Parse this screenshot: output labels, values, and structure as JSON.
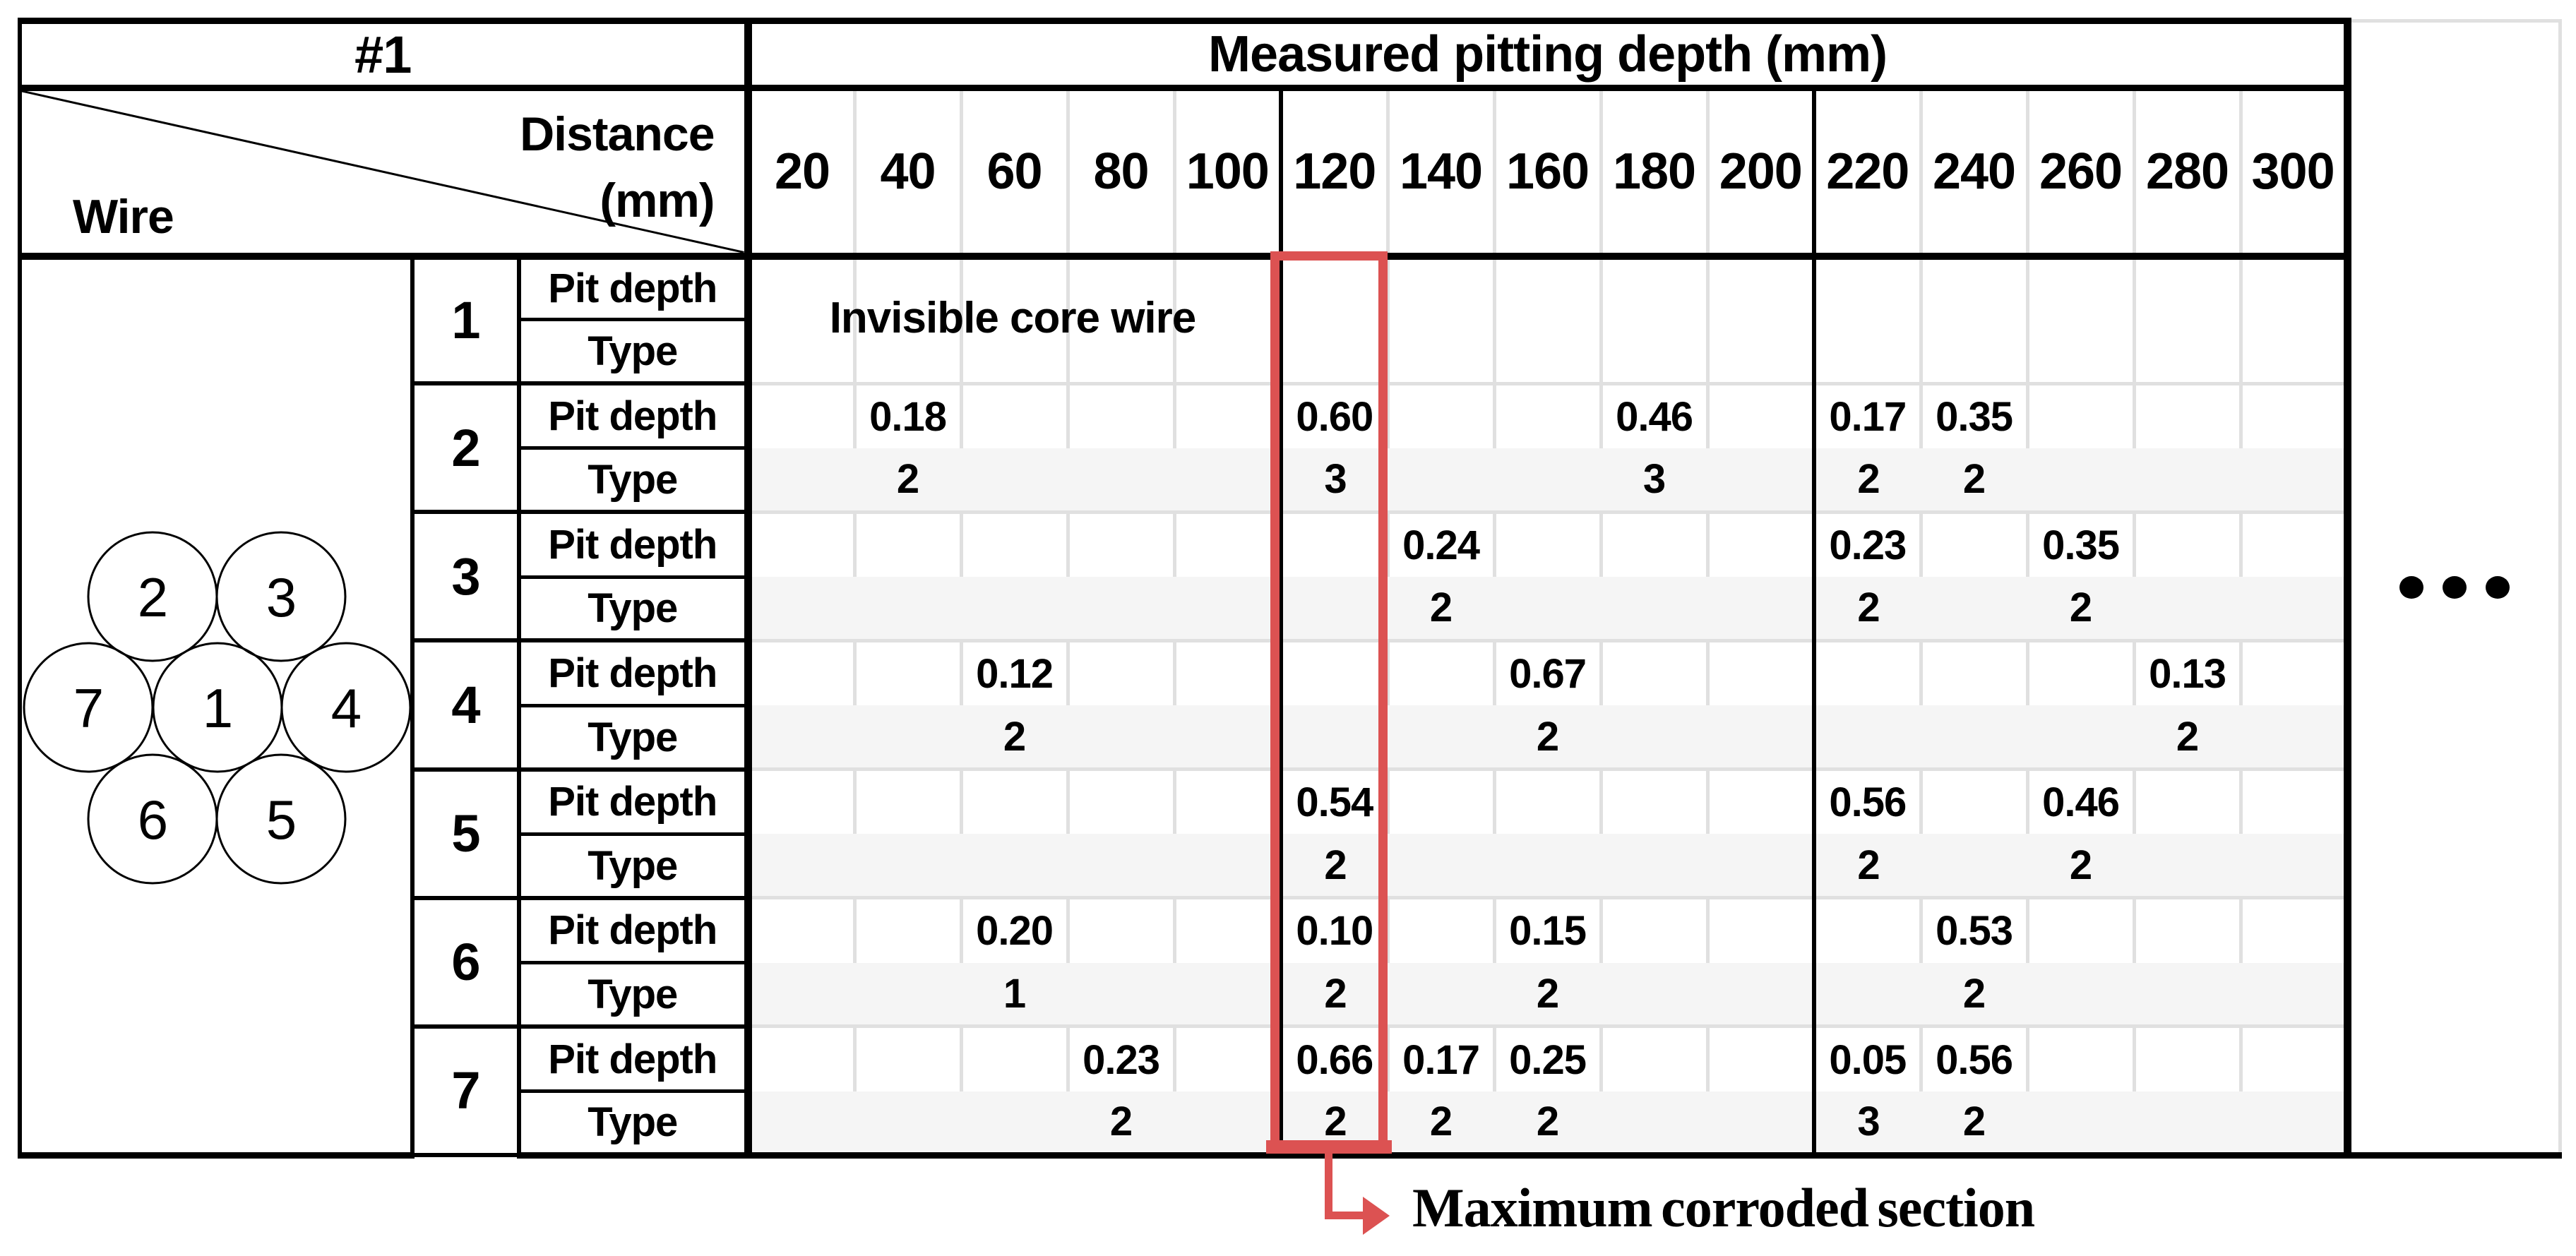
{
  "header": {
    "corner": "#1",
    "title": "Measured pitting depth (mm)",
    "diag": {
      "line1": "Distance",
      "line2": "(mm)",
      "bottom": "Wire"
    }
  },
  "distances": [
    "20",
    "40",
    "60",
    "80",
    "100",
    "120",
    "140",
    "160",
    "180",
    "200",
    "220",
    "240",
    "260",
    "280",
    "300"
  ],
  "row_labels": {
    "pit": "Pit depth",
    "type": "Type"
  },
  "wires": [
    {
      "id": "1",
      "note": "Invisible core wire",
      "pit": {},
      "type": {}
    },
    {
      "id": "2",
      "pit": {
        "40": "0.18",
        "120": "0.60",
        "180": "0.46",
        "220": "0.17",
        "240": "0.35"
      },
      "type": {
        "40": "2",
        "120": "3",
        "180": "3",
        "220": "2",
        "240": "2"
      }
    },
    {
      "id": "3",
      "pit": {
        "140": "0.24",
        "220": "0.23",
        "260": "0.35"
      },
      "type": {
        "140": "2",
        "220": "2",
        "260": "2"
      }
    },
    {
      "id": "4",
      "pit": {
        "60": "0.12",
        "160": "0.67",
        "280": "0.13"
      },
      "type": {
        "60": "2",
        "160": "2",
        "280": "2"
      }
    },
    {
      "id": "5",
      "pit": {
        "120": "0.54",
        "220": "0.56",
        "260": "0.46"
      },
      "type": {
        "120": "2",
        "220": "2",
        "260": "2"
      }
    },
    {
      "id": "6",
      "pit": {
        "60": "0.20",
        "120": "0.10",
        "160": "0.15",
        "240": "0.53"
      },
      "type": {
        "60": "1",
        "120": "2",
        "160": "2",
        "240": "2"
      }
    },
    {
      "id": "7",
      "pit": {
        "80": "0.23",
        "120": "0.66",
        "140": "0.17",
        "160": "0.25",
        "220": "0.05",
        "240": "0.56"
      },
      "type": {
        "80": "2",
        "120": "2",
        "140": "2",
        "160": "2",
        "220": "3",
        "240": "2"
      }
    }
  ],
  "wire_diagram": {
    "circles": [
      "2",
      "3",
      "7",
      "1",
      "4",
      "6",
      "5"
    ]
  },
  "highlight": {
    "column": "120",
    "color": "#dc5252"
  },
  "annotation": {
    "text": "Maximum corroded section"
  },
  "continuation": {
    "symbol": "•••"
  },
  "colors": {
    "highlight_red": "#dc5252",
    "stripe": "#f5f5f5",
    "gridline": "#e0e0e0",
    "line_black": "#000000"
  }
}
